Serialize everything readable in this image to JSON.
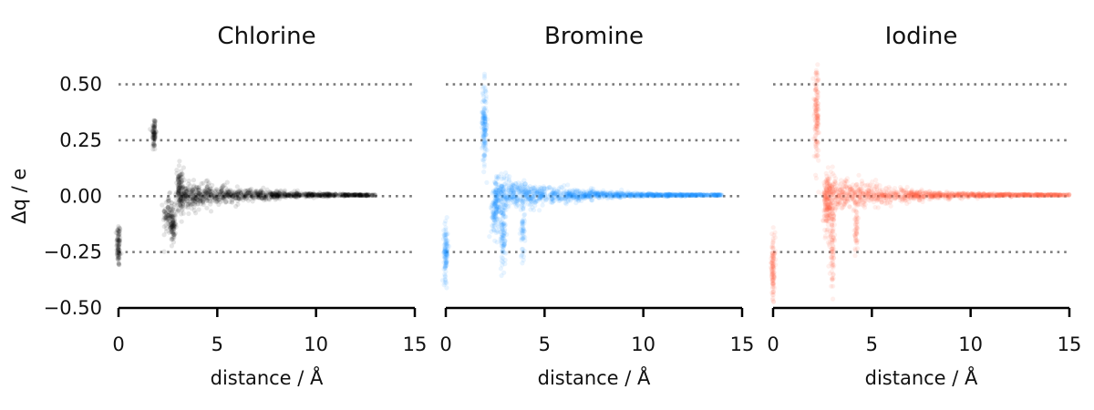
{
  "chart_data": [
    {
      "type": "scatter",
      "title": "Chlorine",
      "xlabel": "distance / Å",
      "ylabel": "Δq / e",
      "color": "#000000",
      "xlim": [
        0,
        15
      ],
      "ylim": [
        -0.5,
        0.6
      ],
      "xticks": [
        "0",
        "5",
        "10",
        "15"
      ],
      "yticks": [
        "0.50",
        "0.25",
        "0.00",
        "−0.25",
        "−0.50"
      ],
      "reference_lines_y": [
        0.5,
        0.25,
        0.0,
        -0.25
      ],
      "clusters": [
        {
          "x": 0.0,
          "x_spread": 0.05,
          "y": -0.22,
          "y_spread": 0.05,
          "n": 90
        },
        {
          "x": 1.8,
          "x_spread": 0.05,
          "y": 0.28,
          "y_spread": 0.04,
          "n": 80
        },
        {
          "x": 2.5,
          "x_spread": 0.12,
          "y": -0.08,
          "y_spread": 0.04,
          "n": 70
        },
        {
          "x": 2.75,
          "x_spread": 0.07,
          "y": -0.13,
          "y_spread": 0.04,
          "n": 90
        },
        {
          "x": 3.1,
          "x_spread": 0.1,
          "y": 0.03,
          "y_spread": 0.05,
          "n": 70
        }
      ],
      "decay": {
        "x_start": 3.0,
        "x_end": 13.0,
        "amplitude": 0.07,
        "scale": 3.0,
        "n": 1100
      }
    },
    {
      "type": "scatter",
      "title": "Bromine",
      "xlabel": "distance / Å",
      "ylabel": "",
      "color": "#1e90ff",
      "xlim": [
        0,
        15
      ],
      "ylim": [
        -0.5,
        0.6
      ],
      "xticks": [
        "0",
        "5",
        "10",
        "15"
      ],
      "yticks": [],
      "reference_lines_y": [
        0.5,
        0.25,
        0.0,
        -0.25
      ],
      "clusters": [
        {
          "x": 0.0,
          "x_spread": 0.05,
          "y": -0.25,
          "y_spread": 0.06,
          "n": 110
        },
        {
          "x": 1.95,
          "x_spread": 0.06,
          "y": 0.32,
          "y_spread": 0.09,
          "n": 140
        },
        {
          "x": 2.5,
          "x_spread": 0.1,
          "y": -0.07,
          "y_spread": 0.06,
          "n": 110
        },
        {
          "x": 2.9,
          "x_spread": 0.07,
          "y": -0.17,
          "y_spread": 0.07,
          "n": 90
        },
        {
          "x": 3.9,
          "x_spread": 0.05,
          "y": -0.15,
          "y_spread": 0.07,
          "n": 50
        }
      ],
      "decay": {
        "x_start": 2.5,
        "x_end": 14.0,
        "amplitude": 0.08,
        "scale": 3.0,
        "n": 1300
      }
    },
    {
      "type": "scatter",
      "title": "Iodine",
      "xlabel": "distance / Å",
      "ylabel": "",
      "color": "#ff6347",
      "xlim": [
        0,
        15
      ],
      "ylim": [
        -0.5,
        0.6
      ],
      "xticks": [
        "0",
        "5",
        "10",
        "15"
      ],
      "yticks": [],
      "reference_lines_y": [
        0.5,
        0.25,
        0.0,
        -0.25
      ],
      "clusters": [
        {
          "x": 0.0,
          "x_spread": 0.05,
          "y": -0.32,
          "y_spread": 0.07,
          "n": 110
        },
        {
          "x": 2.2,
          "x_spread": 0.06,
          "y": 0.36,
          "y_spread": 0.1,
          "n": 140
        },
        {
          "x": 2.75,
          "x_spread": 0.1,
          "y": -0.05,
          "y_spread": 0.06,
          "n": 110
        },
        {
          "x": 3.0,
          "x_spread": 0.07,
          "y": -0.2,
          "y_spread": 0.1,
          "n": 100
        },
        {
          "x": 4.2,
          "x_spread": 0.05,
          "y": -0.15,
          "y_spread": 0.06,
          "n": 50
        }
      ],
      "decay": {
        "x_start": 2.6,
        "x_end": 15.0,
        "amplitude": 0.08,
        "scale": 3.2,
        "n": 1300
      }
    }
  ]
}
